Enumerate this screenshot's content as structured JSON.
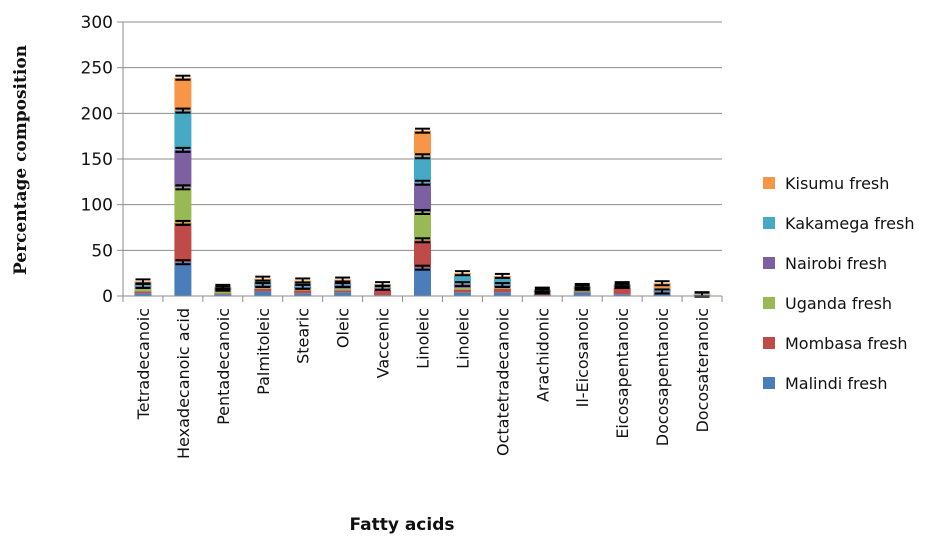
{
  "chart_data": {
    "type": "bar",
    "stacked": true,
    "xlabel": "Fatty acids",
    "ylabel": "Percentage composition",
    "ylim": [
      0,
      300
    ],
    "yticks": [
      0,
      50,
      100,
      150,
      200,
      250,
      300
    ],
    "grid": true,
    "legend_position": "right",
    "categories": [
      "Tetradecanoic",
      "Hexadecanoic acid",
      "Pentadecanoic",
      "Palmitoleic",
      "Stearic",
      "Oleic",
      "Vaccenic",
      "Linoleic",
      "Linoleic",
      "Octatetradecanoic",
      "Arachidonic",
      "Il-Eicosanoic",
      "Eicosapentanoic",
      "Docosapentanoic",
      "Docosateranoic"
    ],
    "series": [
      {
        "name": "Malindi fresh",
        "color": "#4a7ebb",
        "values": [
          3,
          37,
          2,
          5,
          3,
          4,
          1,
          31,
          4,
          4,
          1,
          4,
          2,
          2,
          0.5
        ]
      },
      {
        "name": "Mombasa fresh",
        "color": "#be4b48",
        "values": [
          2,
          43,
          1,
          3,
          3,
          2,
          6,
          30,
          3,
          4,
          1,
          1,
          7,
          1,
          0.3
        ]
      },
      {
        "name": "Uganda fresh",
        "color": "#98b954",
        "values": [
          5,
          39,
          4,
          2,
          2,
          2,
          1,
          31,
          2,
          2,
          2,
          3,
          1,
          1,
          0.3
        ]
      },
      {
        "name": "Nairobi fresh",
        "color": "#7d60a0",
        "values": [
          1,
          41,
          1,
          2,
          2,
          4,
          1,
          32,
          4,
          2,
          1,
          1,
          1,
          1,
          0.3
        ]
      },
      {
        "name": "Kakamega fresh",
        "color": "#46aac5",
        "values": [
          3,
          43,
          1,
          4,
          4,
          4,
          1,
          29,
          9,
          7,
          1,
          1,
          1,
          3,
          0.3
        ]
      },
      {
        "name": "Kisumu fresh",
        "color": "#f79646",
        "values": [
          2,
          36,
          1,
          3,
          3,
          2,
          3,
          28,
          3,
          3,
          1,
          1,
          1,
          6,
          0.3
        ]
      }
    ],
    "error_bars": "black caps at each segment top on selected bars"
  }
}
